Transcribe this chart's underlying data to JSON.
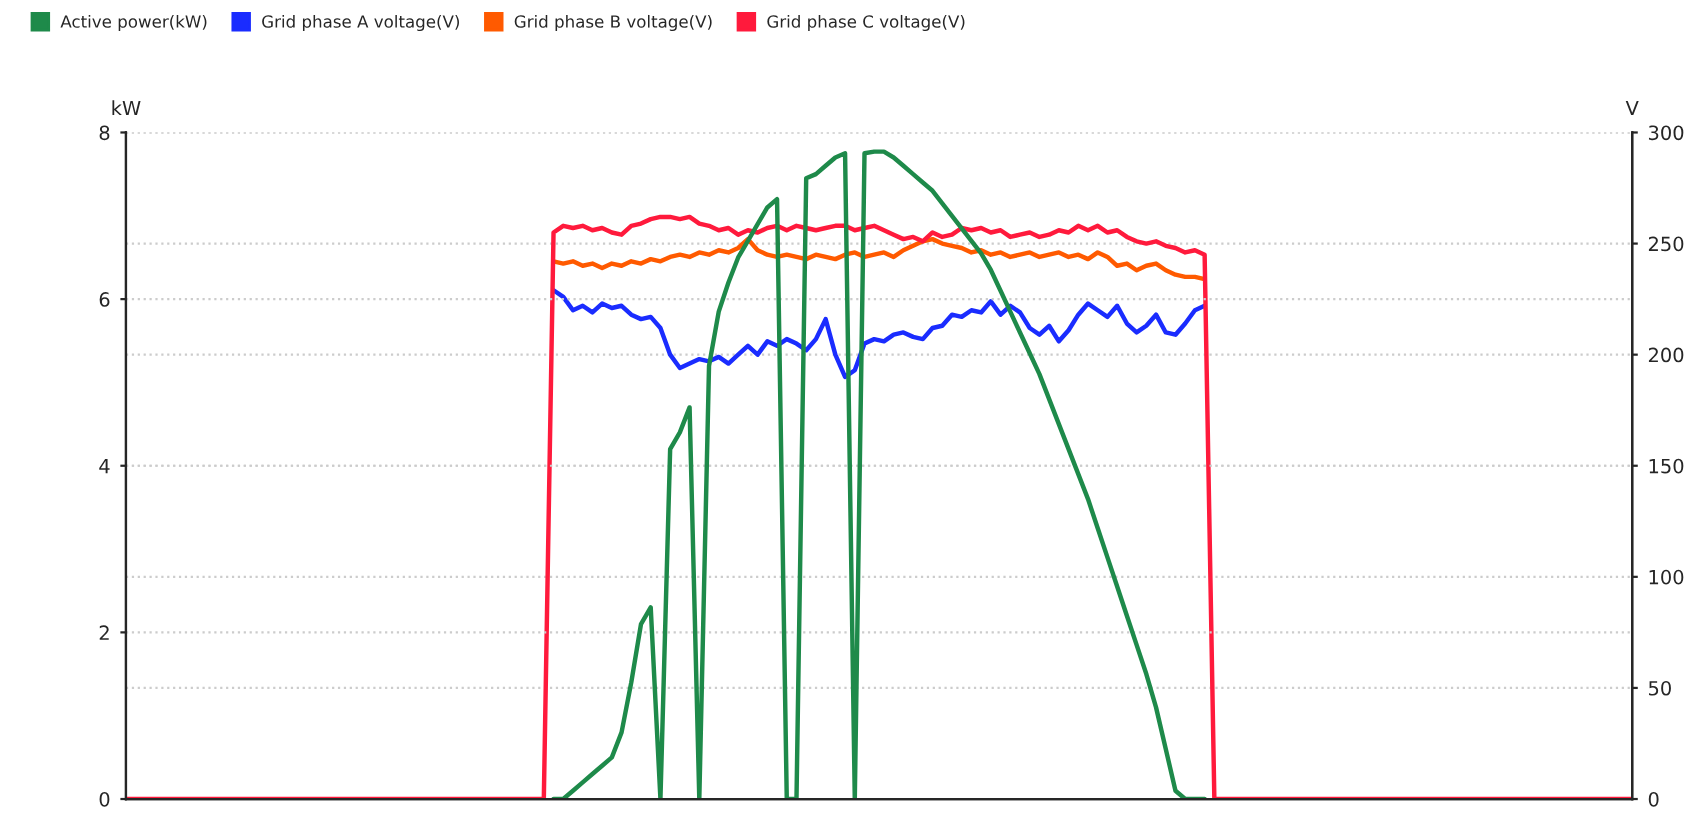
{
  "chart_data": {
    "type": "line",
    "categories": [
      null,
      null,
      null,
      null,
      null,
      null,
      null,
      null,
      null,
      null,
      null,
      null,
      null,
      null,
      null,
      null,
      null,
      null,
      null,
      null,
      null,
      null,
      null,
      null,
      null,
      null,
      null,
      null,
      null,
      null,
      null,
      null,
      null,
      null,
      null,
      null,
      null,
      null,
      null,
      null,
      null,
      null,
      null,
      null,
      null,
      null,
      null,
      null,
      null,
      null,
      null,
      null,
      null,
      null,
      null,
      null,
      null,
      null,
      null,
      null,
      null,
      null,
      null,
      null,
      null,
      null,
      null,
      null,
      null,
      null,
      null,
      null,
      null,
      null,
      null,
      null,
      null,
      null,
      null,
      null,
      null,
      null,
      null,
      null,
      null,
      null,
      null,
      null,
      null,
      null,
      null,
      null,
      null,
      null,
      null,
      null,
      null,
      null,
      null,
      null,
      null,
      null,
      null,
      null,
      null,
      null,
      null,
      null,
      null,
      null,
      null,
      null,
      null,
      null,
      null,
      null,
      null,
      null,
      null,
      null,
      null,
      null,
      null,
      null,
      null,
      null,
      null,
      null,
      null,
      null,
      null,
      null,
      null,
      null,
      null,
      null,
      null,
      null,
      null,
      null,
      null,
      null,
      null,
      null,
      null,
      null,
      null,
      null,
      null,
      null,
      null,
      null,
      null,
      null,
      null,
      null
    ],
    "series": [
      {
        "name": "Active power(kW)",
        "color": "#1e8a4a",
        "values": [
          null,
          null,
          null,
          null,
          null,
          null,
          null,
          null,
          null,
          null,
          null,
          null,
          null,
          null,
          null,
          null,
          null,
          null,
          null,
          null,
          null,
          null,
          null,
          null,
          null,
          null,
          null,
          null,
          null,
          null,
          null,
          null,
          null,
          null,
          null,
          null,
          null,
          null,
          null,
          null,
          null,
          null,
          null,
          null,
          0,
          0,
          0.1,
          0.2,
          0.3,
          0.4,
          0.5,
          0.8,
          1.4,
          2.1,
          2.3,
          0,
          4.2,
          4.4,
          4.7,
          0,
          5.2,
          5.85,
          6.2,
          6.5,
          6.7,
          6.9,
          7.1,
          7.2,
          0,
          0,
          7.45,
          7.5,
          7.6,
          7.7,
          7.75,
          0,
          7.75,
          7.77,
          7.77,
          7.7,
          7.6,
          7.5,
          7.4,
          7.3,
          7.15,
          7.0,
          6.85,
          6.7,
          6.55,
          6.35,
          6.1,
          5.85,
          5.6,
          5.35,
          5.1,
          4.8,
          4.5,
          4.2,
          3.9,
          3.6,
          3.25,
          2.9,
          2.55,
          2.2,
          1.85,
          1.5,
          1.1,
          0.6,
          0.1,
          0,
          0,
          0,
          null,
          null,
          null,
          null,
          null,
          null,
          null,
          null,
          null,
          null,
          null,
          null,
          null,
          null,
          null,
          null,
          null,
          null,
          null,
          null,
          null,
          null,
          null,
          null,
          null,
          null,
          null,
          null,
          null,
          null,
          null,
          null,
          null,
          null,
          null,
          null,
          null,
          null,
          null,
          null,
          null,
          null,
          null,
          null
        ]
      },
      {
        "name": "Grid phase A voltage(V)",
        "color": "#1a2cff",
        "axis": "y2",
        "values": [
          null,
          null,
          null,
          null,
          null,
          null,
          null,
          null,
          null,
          null,
          null,
          null,
          null,
          null,
          null,
          null,
          null,
          null,
          null,
          null,
          null,
          null,
          null,
          null,
          null,
          null,
          null,
          null,
          null,
          null,
          null,
          null,
          null,
          null,
          null,
          null,
          null,
          null,
          null,
          null,
          null,
          null,
          null,
          null,
          229,
          226,
          220,
          222,
          219,
          223,
          221,
          222,
          218,
          216,
          217,
          212,
          200,
          194,
          196,
          198,
          197,
          199,
          196,
          200,
          204,
          200,
          206,
          204,
          207,
          205,
          202,
          207,
          216,
          200,
          190,
          193,
          205,
          207,
          206,
          209,
          210,
          208,
          207,
          212,
          213,
          218,
          217,
          220,
          219,
          224,
          218,
          222,
          219,
          212,
          209,
          213,
          206,
          211,
          218,
          223,
          220,
          217,
          222,
          214,
          210,
          213,
          218,
          210,
          209,
          214,
          220,
          222,
          null,
          null,
          null,
          null,
          null,
          null,
          null,
          null,
          null,
          null,
          null,
          null,
          null,
          null,
          null,
          null,
          null,
          null,
          null,
          null,
          null,
          null,
          null,
          null,
          null,
          null,
          null,
          null,
          null,
          null,
          null,
          null,
          null,
          null,
          null,
          null,
          null,
          null,
          null,
          null,
          null,
          null,
          null,
          null
        ]
      },
      {
        "name": "Grid phase B voltage(V)",
        "color": "#ff5a00",
        "axis": "y2",
        "values": [
          null,
          null,
          null,
          null,
          null,
          null,
          null,
          null,
          null,
          null,
          null,
          null,
          null,
          null,
          null,
          null,
          null,
          null,
          null,
          null,
          null,
          null,
          null,
          null,
          null,
          null,
          null,
          null,
          null,
          null,
          null,
          null,
          null,
          null,
          null,
          null,
          null,
          null,
          null,
          null,
          null,
          null,
          null,
          null,
          242,
          241,
          242,
          240,
          241,
          239,
          241,
          240,
          242,
          241,
          243,
          242,
          244,
          245,
          244,
          246,
          245,
          247,
          246,
          248,
          252,
          247,
          245,
          244,
          245,
          244,
          243,
          245,
          244,
          243,
          245,
          246,
          244,
          245,
          246,
          244,
          247,
          249,
          251,
          252,
          250,
          249,
          248,
          246,
          247,
          245,
          246,
          244,
          245,
          246,
          244,
          245,
          246,
          244,
          245,
          243,
          246,
          244,
          240,
          241,
          238,
          240,
          241,
          238,
          236,
          235,
          235,
          234,
          null,
          null,
          null,
          null,
          null,
          null,
          null,
          null,
          null,
          null,
          null,
          null,
          null,
          null,
          null,
          null,
          null,
          null,
          null,
          null,
          null,
          null,
          null,
          null,
          null,
          null,
          null,
          null,
          null,
          null,
          null,
          null,
          null,
          null,
          null,
          null,
          null,
          null,
          null,
          null,
          null,
          null,
          null,
          null
        ]
      },
      {
        "name": "Grid phase C voltage(V)",
        "color": "#ff1a3c",
        "axis": "y2",
        "values": [
          0,
          0,
          0,
          0,
          0,
          0,
          0,
          0,
          0,
          0,
          0,
          0,
          0,
          0,
          0,
          0,
          0,
          0,
          0,
          0,
          0,
          0,
          0,
          0,
          0,
          0,
          0,
          0,
          0,
          0,
          0,
          0,
          0,
          0,
          0,
          0,
          0,
          0,
          0,
          0,
          0,
          0,
          0,
          0,
          255,
          258,
          257,
          258,
          256,
          257,
          255,
          254,
          258,
          259,
          261,
          262,
          262,
          261,
          262,
          259,
          258,
          256,
          257,
          254,
          256,
          255,
          257,
          258,
          256,
          258,
          257,
          256,
          257,
          258,
          258,
          256,
          257,
          258,
          256,
          254,
          252,
          253,
          251,
          255,
          253,
          254,
          257,
          256,
          257,
          255,
          256,
          253,
          254,
          255,
          253,
          254,
          256,
          255,
          258,
          256,
          258,
          255,
          256,
          253,
          251,
          250,
          251,
          249,
          248,
          246,
          247,
          245,
          0,
          0,
          0,
          0,
          0,
          0,
          0,
          0,
          0,
          0,
          0,
          0,
          0,
          0,
          0,
          0,
          0,
          0,
          0,
          0,
          0,
          0,
          0,
          0,
          0,
          0,
          0,
          0,
          0,
          0,
          0,
          0,
          0,
          0,
          0,
          0,
          0,
          0,
          0,
          0,
          0,
          0,
          0,
          0
        ]
      }
    ],
    "ylabel": "kW",
    "y2label": "V",
    "ylim": [
      0,
      8
    ],
    "yticks": [
      0,
      2,
      4,
      6,
      8
    ],
    "y2lim": [
      0,
      300
    ],
    "y2ticks": [
      0,
      50,
      100,
      150,
      200,
      250,
      300
    ],
    "grid": true,
    "legend": "top left",
    "marker": "none",
    "line_style": "solid"
  }
}
